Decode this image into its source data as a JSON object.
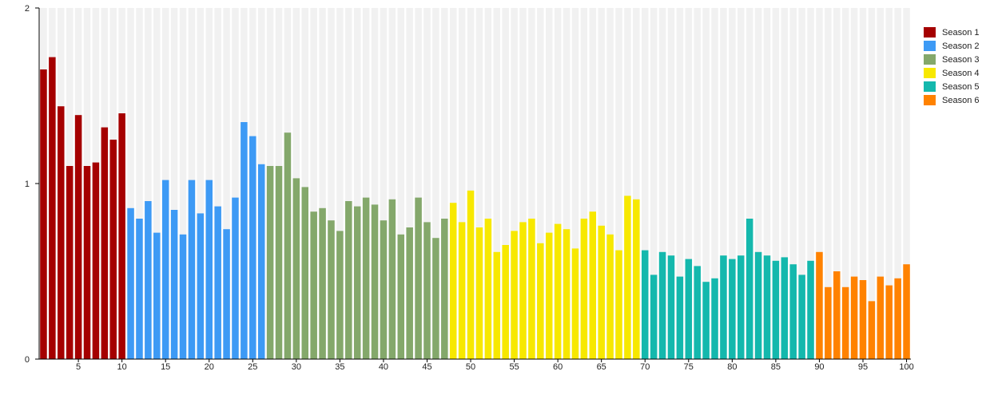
{
  "chart_data": {
    "type": "bar",
    "xlabel": "",
    "ylabel": "",
    "ylim": [
      0,
      2
    ],
    "yticks": [
      0,
      1,
      2
    ],
    "xticks": [
      5,
      10,
      15,
      20,
      25,
      30,
      35,
      40,
      45,
      50,
      55,
      60,
      65,
      70,
      75,
      80,
      85,
      90,
      95,
      100
    ],
    "legend_position": "right",
    "series": [
      {
        "name": "Season 1",
        "color": "#a50000",
        "x_start": 1,
        "values": [
          1.65,
          1.72,
          1.44,
          1.1,
          1.39,
          1.1,
          1.12,
          1.32,
          1.25,
          1.4
        ]
      },
      {
        "name": "Season 2",
        "color": "#3d9af5",
        "x_start": 11,
        "values": [
          0.86,
          0.8,
          0.9,
          0.72,
          1.02,
          0.85,
          0.71,
          1.02,
          0.83,
          1.02,
          0.87,
          0.74,
          0.92,
          1.35,
          1.27,
          1.11
        ]
      },
      {
        "name": "Season 3",
        "color": "#84a86b",
        "x_start": 27,
        "values": [
          1.1,
          1.1,
          1.29,
          1.03,
          0.98,
          0.84,
          0.86,
          0.79,
          0.73,
          0.9,
          0.87,
          0.92,
          0.88,
          0.79,
          0.91,
          0.71,
          0.75,
          0.92,
          0.78,
          0.69,
          0.8
        ]
      },
      {
        "name": "Season 4",
        "color": "#f7e800",
        "x_start": 48,
        "values": [
          0.89,
          0.78,
          0.96,
          0.75,
          0.8,
          0.61,
          0.65,
          0.73,
          0.78,
          0.8,
          0.66,
          0.72,
          0.77,
          0.74,
          0.63,
          0.8,
          0.84,
          0.76,
          0.71,
          0.62,
          0.93,
          0.91
        ]
      },
      {
        "name": "Season 5",
        "color": "#14b8ad",
        "x_start": 70,
        "values": [
          0.62,
          0.48,
          0.61,
          0.59,
          0.47,
          0.57,
          0.53,
          0.44,
          0.46,
          0.59,
          0.57,
          0.59,
          0.8,
          0.61,
          0.59,
          0.56,
          0.58,
          0.54,
          0.48,
          0.56
        ]
      },
      {
        "name": "Season 6",
        "color": "#ff8200",
        "x_start": 90,
        "values": [
          0.61,
          0.41,
          0.5,
          0.41,
          0.47,
          0.45,
          0.33,
          0.47,
          0.42,
          0.46,
          0.54
        ]
      }
    ],
    "grid": true,
    "background_stripe_color": "#f1f1f1"
  }
}
